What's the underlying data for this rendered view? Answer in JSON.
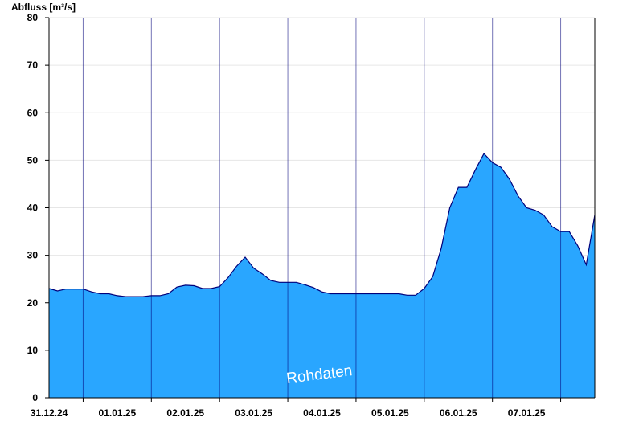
{
  "chart_data": {
    "type": "area",
    "ylabel": "Abfluss [m³/s]",
    "watermark": "Rohdaten",
    "ylim": [
      0,
      80
    ],
    "xlim": [
      "2024-12-30 12:00",
      "2025-01-07 12:00"
    ],
    "yticks": [
      0,
      10,
      20,
      30,
      40,
      50,
      60,
      70,
      80
    ],
    "day_boundaries": [
      "2024-12-31 00:00",
      "2025-01-01 00:00",
      "2025-01-02 00:00",
      "2025-01-03 00:00",
      "2025-01-04 00:00",
      "2025-01-05 00:00",
      "2025-01-06 00:00",
      "2025-01-07 00:00"
    ],
    "categories": [
      "31.12.24",
      "01.01.25",
      "02.01.25",
      "03.01.25",
      "04.01.25",
      "05.01.25",
      "06.01.25",
      "07.01.25"
    ],
    "grid": true,
    "colors": {
      "fill": "#29a6ff",
      "line": "#00007a",
      "grid": "#e6e6e6",
      "axis": "#000000"
    },
    "series": [
      {
        "x": [
          "2024-12-30 12:00",
          "2024-12-30 15:00",
          "2024-12-30 18:00",
          "2024-12-30 21:00",
          "2024-12-31 00:00",
          "2024-12-31 03:00",
          "2024-12-31 06:00",
          "2024-12-31 09:00",
          "2024-12-31 12:00",
          "2024-12-31 15:00",
          "2024-12-31 18:00",
          "2024-12-31 21:00",
          "2025-01-01 00:00",
          "2025-01-01 03:00",
          "2025-01-01 06:00",
          "2025-01-01 09:00",
          "2025-01-01 12:00",
          "2025-01-01 15:00",
          "2025-01-01 18:00",
          "2025-01-01 21:00",
          "2025-01-02 00:00",
          "2025-01-02 03:00",
          "2025-01-02 06:00",
          "2025-01-02 09:00",
          "2025-01-02 12:00",
          "2025-01-02 15:00",
          "2025-01-02 18:00",
          "2025-01-02 21:00",
          "2025-01-03 00:00",
          "2025-01-03 03:00",
          "2025-01-03 06:00",
          "2025-01-03 09:00",
          "2025-01-03 12:00",
          "2025-01-03 15:00",
          "2025-01-03 18:00",
          "2025-01-03 21:00",
          "2025-01-04 00:00",
          "2025-01-04 03:00",
          "2025-01-04 06:00",
          "2025-01-04 09:00",
          "2025-01-04 12:00",
          "2025-01-04 15:00",
          "2025-01-04 18:00",
          "2025-01-04 21:00",
          "2025-01-05 00:00",
          "2025-01-05 03:00",
          "2025-01-05 06:00",
          "2025-01-05 09:00",
          "2025-01-05 12:00",
          "2025-01-05 15:00",
          "2025-01-05 18:00",
          "2025-01-05 21:00",
          "2025-01-06 00:00",
          "2025-01-06 03:00",
          "2025-01-06 06:00",
          "2025-01-06 09:00",
          "2025-01-06 12:00",
          "2025-01-06 15:00",
          "2025-01-06 18:00",
          "2025-01-06 21:00",
          "2025-01-07 00:00",
          "2025-01-07 03:00",
          "2025-01-07 06:00",
          "2025-01-07 09:00",
          "2025-01-07 12:00"
        ],
        "y": [
          23.0,
          22.5,
          22.9,
          22.9,
          22.9,
          22.3,
          21.9,
          21.9,
          21.5,
          21.3,
          21.3,
          21.3,
          21.5,
          21.5,
          21.9,
          23.3,
          23.7,
          23.6,
          23.0,
          23.0,
          23.4,
          25.3,
          27.7,
          29.6,
          27.3,
          26.1,
          24.7,
          24.3,
          24.3,
          24.3,
          23.8,
          23.2,
          22.3,
          21.9,
          21.9,
          21.9,
          21.9,
          21.9,
          21.9,
          21.9,
          21.9,
          21.9,
          21.6,
          21.6,
          23.0,
          25.5,
          31.5,
          40.0,
          44.3,
          44.3,
          48.0,
          51.4,
          49.5,
          48.5,
          46.0,
          42.5,
          40.0,
          39.5,
          38.5,
          36.0,
          35.0,
          35.0,
          32.0,
          28.0,
          38.5
        ]
      }
    ]
  }
}
